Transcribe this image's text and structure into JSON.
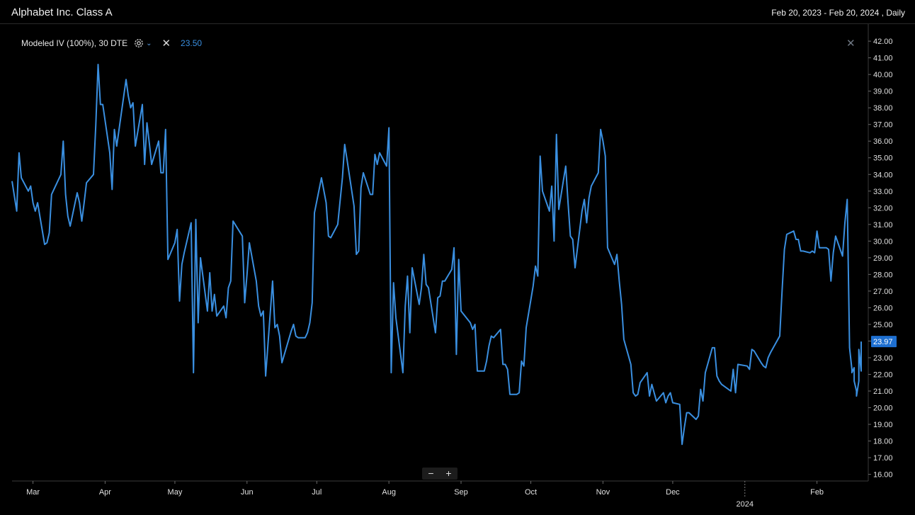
{
  "header": {
    "title": "Alphabet Inc. Class A",
    "range": "Feb 20, 2023 - Feb 20, 2024 , Daily"
  },
  "legend": {
    "label": "Modeled IV (100%), 30 DTE",
    "value": "23.50"
  },
  "colors": {
    "series": "#3a8fe0",
    "background": "#000000",
    "label_box": "#1e6fd0"
  },
  "zoom": {
    "minus": "−",
    "plus": "+"
  },
  "close_symbol": "✕",
  "chart_data": {
    "type": "line",
    "x_start": "2023-02-20",
    "x_end": "2024-02-20",
    "ylim": [
      15.6,
      42.6
    ],
    "y_ticks": [
      "16.00",
      "17.00",
      "18.00",
      "19.00",
      "20.00",
      "21.00",
      "22.00",
      "23.00",
      "24.00",
      "25.00",
      "26.00",
      "27.00",
      "28.00",
      "29.00",
      "30.00",
      "31.00",
      "32.00",
      "33.00",
      "34.00",
      "35.00",
      "36.00",
      "37.00",
      "38.00",
      "39.00",
      "40.00",
      "41.00",
      "42.00"
    ],
    "x_ticks": [
      {
        "label": "Mar",
        "date": "2023-03-01"
      },
      {
        "label": "Apr",
        "date": "2023-04-01"
      },
      {
        "label": "May",
        "date": "2023-05-01"
      },
      {
        "label": "Jun",
        "date": "2023-06-01"
      },
      {
        "label": "Jul",
        "date": "2023-07-01"
      },
      {
        "label": "Aug",
        "date": "2023-08-01"
      },
      {
        "label": "Sep",
        "date": "2023-09-01"
      },
      {
        "label": "Oct",
        "date": "2023-10-01"
      },
      {
        "label": "Nov",
        "date": "2023-11-01"
      },
      {
        "label": "Dec",
        "date": "2023-12-01"
      },
      {
        "label": "Feb",
        "date": "2024-02-01"
      }
    ],
    "year_marker": {
      "label": "2024",
      "date": "2024-01-01"
    },
    "last_value_label": "23.97",
    "series": [
      {
        "values": [
          [
            "2023-02-20",
            33.6
          ],
          [
            "2023-02-22",
            31.8
          ],
          [
            "2023-02-23",
            35.3
          ],
          [
            "2023-02-24",
            33.8
          ],
          [
            "2023-02-27",
            33.0
          ],
          [
            "2023-02-28",
            33.3
          ],
          [
            "2023-03-01",
            32.3
          ],
          [
            "2023-03-02",
            31.8
          ],
          [
            "2023-03-03",
            32.3
          ],
          [
            "2023-03-06",
            29.8
          ],
          [
            "2023-03-07",
            29.9
          ],
          [
            "2023-03-08",
            30.5
          ],
          [
            "2023-03-09",
            32.8
          ],
          [
            "2023-03-10",
            33.1
          ],
          [
            "2023-03-13",
            34.0
          ],
          [
            "2023-03-14",
            36.0
          ],
          [
            "2023-03-15",
            32.8
          ],
          [
            "2023-03-16",
            31.5
          ],
          [
            "2023-03-17",
            30.9
          ],
          [
            "2023-03-20",
            32.9
          ],
          [
            "2023-03-21",
            32.3
          ],
          [
            "2023-03-22",
            31.2
          ],
          [
            "2023-03-23",
            32.3
          ],
          [
            "2023-03-24",
            33.5
          ],
          [
            "2023-03-27",
            34.0
          ],
          [
            "2023-03-28",
            37.0
          ],
          [
            "2023-03-29",
            40.6
          ],
          [
            "2023-03-30",
            38.2
          ],
          [
            "2023-03-31",
            38.2
          ],
          [
            "2023-04-03",
            35.3
          ],
          [
            "2023-04-04",
            33.1
          ],
          [
            "2023-04-05",
            36.7
          ],
          [
            "2023-04-06",
            35.7
          ],
          [
            "2023-04-10",
            39.7
          ],
          [
            "2023-04-11",
            38.7
          ],
          [
            "2023-04-12",
            38.0
          ],
          [
            "2023-04-13",
            38.3
          ],
          [
            "2023-04-14",
            35.7
          ],
          [
            "2023-04-17",
            38.2
          ],
          [
            "2023-04-18",
            34.6
          ],
          [
            "2023-04-19",
            37.1
          ],
          [
            "2023-04-20",
            35.9
          ],
          [
            "2023-04-21",
            34.6
          ],
          [
            "2023-04-24",
            36.0
          ],
          [
            "2023-04-25",
            34.1
          ],
          [
            "2023-04-26",
            34.1
          ],
          [
            "2023-04-27",
            36.7
          ],
          [
            "2023-04-28",
            28.9
          ],
          [
            "2023-05-01",
            29.9
          ],
          [
            "2023-05-02",
            30.7
          ],
          [
            "2023-05-03",
            26.4
          ],
          [
            "2023-05-04",
            28.6
          ],
          [
            "2023-05-05",
            29.3
          ],
          [
            "2023-05-08",
            31.1
          ],
          [
            "2023-05-09",
            22.1
          ],
          [
            "2023-05-10",
            31.3
          ],
          [
            "2023-05-11",
            25.1
          ],
          [
            "2023-05-12",
            29.0
          ],
          [
            "2023-05-15",
            25.8
          ],
          [
            "2023-05-16",
            28.1
          ],
          [
            "2023-05-17",
            25.8
          ],
          [
            "2023-05-18",
            26.8
          ],
          [
            "2023-05-19",
            25.5
          ],
          [
            "2023-05-22",
            26.1
          ],
          [
            "2023-05-23",
            25.4
          ],
          [
            "2023-05-24",
            27.2
          ],
          [
            "2023-05-25",
            27.6
          ],
          [
            "2023-05-26",
            31.2
          ],
          [
            "2023-05-30",
            30.3
          ],
          [
            "2023-05-31",
            26.3
          ],
          [
            "2023-06-01",
            28.0
          ],
          [
            "2023-06-02",
            29.9
          ],
          [
            "2023-06-05",
            27.6
          ],
          [
            "2023-06-06",
            26.1
          ],
          [
            "2023-06-07",
            25.5
          ],
          [
            "2023-06-08",
            25.8
          ],
          [
            "2023-06-09",
            21.9
          ],
          [
            "2023-06-12",
            27.6
          ],
          [
            "2023-06-13",
            24.8
          ],
          [
            "2023-06-14",
            25.0
          ],
          [
            "2023-06-15",
            24.3
          ],
          [
            "2023-06-16",
            22.7
          ],
          [
            "2023-06-20",
            24.6
          ],
          [
            "2023-06-21",
            25.0
          ],
          [
            "2023-06-22",
            24.3
          ],
          [
            "2023-06-23",
            24.2
          ],
          [
            "2023-06-26",
            24.2
          ],
          [
            "2023-06-27",
            24.5
          ],
          [
            "2023-06-28",
            25.1
          ],
          [
            "2023-06-29",
            26.3
          ],
          [
            "2023-06-30",
            31.7
          ],
          [
            "2023-07-03",
            33.8
          ],
          [
            "2023-07-05",
            32.3
          ],
          [
            "2023-07-06",
            30.3
          ],
          [
            "2023-07-07",
            30.2
          ],
          [
            "2023-07-10",
            31.0
          ],
          [
            "2023-07-11",
            32.4
          ],
          [
            "2023-07-12",
            33.8
          ],
          [
            "2023-07-13",
            35.8
          ],
          [
            "2023-07-14",
            34.9
          ],
          [
            "2023-07-17",
            32.1
          ],
          [
            "2023-07-18",
            29.2
          ],
          [
            "2023-07-19",
            29.4
          ],
          [
            "2023-07-20",
            33.2
          ],
          [
            "2023-07-21",
            34.1
          ],
          [
            "2023-07-24",
            32.8
          ],
          [
            "2023-07-25",
            32.8
          ],
          [
            "2023-07-26",
            35.2
          ],
          [
            "2023-07-27",
            34.6
          ],
          [
            "2023-07-28",
            35.3
          ],
          [
            "2023-07-31",
            34.5
          ],
          [
            "2023-08-01",
            36.8
          ],
          [
            "2023-08-02",
            22.1
          ],
          [
            "2023-08-03",
            27.5
          ],
          [
            "2023-08-04",
            25.4
          ],
          [
            "2023-08-07",
            22.1
          ],
          [
            "2023-08-08",
            26.1
          ],
          [
            "2023-08-09",
            27.9
          ],
          [
            "2023-08-10",
            24.5
          ],
          [
            "2023-08-11",
            28.4
          ],
          [
            "2023-08-14",
            26.2
          ],
          [
            "2023-08-15",
            27.2
          ],
          [
            "2023-08-16",
            29.2
          ],
          [
            "2023-08-17",
            27.4
          ],
          [
            "2023-08-18",
            27.2
          ],
          [
            "2023-08-21",
            24.5
          ],
          [
            "2023-08-22",
            26.6
          ],
          [
            "2023-08-23",
            26.7
          ],
          [
            "2023-08-24",
            27.6
          ],
          [
            "2023-08-25",
            27.6
          ],
          [
            "2023-08-28",
            28.3
          ],
          [
            "2023-08-29",
            29.6
          ],
          [
            "2023-08-30",
            23.2
          ],
          [
            "2023-08-31",
            28.9
          ],
          [
            "2023-09-01",
            25.8
          ],
          [
            "2023-09-05",
            25.1
          ],
          [
            "2023-09-06",
            24.7
          ],
          [
            "2023-09-07",
            25.0
          ],
          [
            "2023-09-08",
            22.2
          ],
          [
            "2023-09-11",
            22.2
          ],
          [
            "2023-09-12",
            22.8
          ],
          [
            "2023-09-13",
            23.7
          ],
          [
            "2023-09-14",
            24.3
          ],
          [
            "2023-09-15",
            24.2
          ],
          [
            "2023-09-18",
            24.7
          ],
          [
            "2023-09-19",
            22.6
          ],
          [
            "2023-09-20",
            22.6
          ],
          [
            "2023-09-21",
            22.3
          ],
          [
            "2023-09-22",
            20.8
          ],
          [
            "2023-09-25",
            20.8
          ],
          [
            "2023-09-26",
            20.9
          ],
          [
            "2023-09-27",
            22.8
          ],
          [
            "2023-09-28",
            22.5
          ],
          [
            "2023-09-29",
            24.8
          ],
          [
            "2023-10-02",
            27.3
          ],
          [
            "2023-10-03",
            28.5
          ],
          [
            "2023-10-04",
            27.9
          ],
          [
            "2023-10-05",
            35.1
          ],
          [
            "2023-10-06",
            33.0
          ],
          [
            "2023-10-09",
            31.8
          ],
          [
            "2023-10-10",
            33.3
          ],
          [
            "2023-10-11",
            30.0
          ],
          [
            "2023-10-12",
            36.4
          ],
          [
            "2023-10-13",
            31.9
          ],
          [
            "2023-10-16",
            34.5
          ],
          [
            "2023-10-17",
            32.3
          ],
          [
            "2023-10-18",
            30.3
          ],
          [
            "2023-10-19",
            30.1
          ],
          [
            "2023-10-20",
            28.4
          ],
          [
            "2023-10-23",
            31.8
          ],
          [
            "2023-10-24",
            32.5
          ],
          [
            "2023-10-25",
            31.1
          ],
          [
            "2023-10-26",
            32.6
          ],
          [
            "2023-10-27",
            33.3
          ],
          [
            "2023-10-30",
            34.1
          ],
          [
            "2023-10-31",
            36.7
          ],
          [
            "2023-11-01",
            36.0
          ],
          [
            "2023-11-02",
            35.1
          ],
          [
            "2023-11-03",
            29.6
          ],
          [
            "2023-11-06",
            28.6
          ],
          [
            "2023-11-07",
            29.2
          ],
          [
            "2023-11-08",
            27.6
          ],
          [
            "2023-11-09",
            26.2
          ],
          [
            "2023-11-10",
            24.1
          ],
          [
            "2023-11-13",
            22.6
          ],
          [
            "2023-11-14",
            20.9
          ],
          [
            "2023-11-15",
            20.7
          ],
          [
            "2023-11-16",
            20.8
          ],
          [
            "2023-11-17",
            21.5
          ],
          [
            "2023-11-20",
            22.1
          ],
          [
            "2023-11-21",
            20.7
          ],
          [
            "2023-11-22",
            21.4
          ],
          [
            "2023-11-24",
            20.4
          ],
          [
            "2023-11-27",
            20.9
          ],
          [
            "2023-11-28",
            20.3
          ],
          [
            "2023-11-29",
            20.7
          ],
          [
            "2023-11-30",
            20.9
          ],
          [
            "2023-12-01",
            20.3
          ],
          [
            "2023-12-04",
            20.2
          ],
          [
            "2023-12-05",
            17.8
          ],
          [
            "2023-12-06",
            18.8
          ],
          [
            "2023-12-07",
            19.7
          ],
          [
            "2023-12-08",
            19.7
          ],
          [
            "2023-12-11",
            19.3
          ],
          [
            "2023-12-12",
            19.5
          ],
          [
            "2023-12-13",
            21.1
          ],
          [
            "2023-12-14",
            20.4
          ],
          [
            "2023-12-15",
            22.1
          ],
          [
            "2023-12-18",
            23.6
          ],
          [
            "2023-12-19",
            23.6
          ],
          [
            "2023-12-20",
            21.9
          ],
          [
            "2023-12-21",
            21.6
          ],
          [
            "2023-12-22",
            21.4
          ],
          [
            "2023-12-26",
            21.0
          ],
          [
            "2023-12-27",
            22.3
          ],
          [
            "2023-12-28",
            20.9
          ],
          [
            "2023-12-29",
            22.6
          ],
          [
            "2024-01-02",
            22.5
          ],
          [
            "2024-01-03",
            22.3
          ],
          [
            "2024-01-04",
            23.5
          ],
          [
            "2024-01-05",
            23.4
          ],
          [
            "2024-01-08",
            22.7
          ],
          [
            "2024-01-09",
            22.5
          ],
          [
            "2024-01-10",
            22.4
          ],
          [
            "2024-01-11",
            23.0
          ],
          [
            "2024-01-12",
            23.3
          ],
          [
            "2024-01-16",
            24.3
          ],
          [
            "2024-01-17",
            27.0
          ],
          [
            "2024-01-18",
            29.5
          ],
          [
            "2024-01-19",
            30.4
          ],
          [
            "2024-01-22",
            30.6
          ],
          [
            "2024-01-23",
            30.1
          ],
          [
            "2024-01-24",
            30.1
          ],
          [
            "2024-01-25",
            29.4
          ],
          [
            "2024-01-26",
            29.4
          ],
          [
            "2024-01-29",
            29.3
          ],
          [
            "2024-01-30",
            29.4
          ],
          [
            "2024-01-31",
            29.3
          ],
          [
            "2024-02-01",
            30.6
          ],
          [
            "2024-02-02",
            29.6
          ],
          [
            "2024-02-05",
            29.6
          ],
          [
            "2024-02-06",
            29.5
          ],
          [
            "2024-02-07",
            27.6
          ],
          [
            "2024-02-08",
            29.3
          ],
          [
            "2024-02-09",
            30.3
          ],
          [
            "2024-02-12",
            29.1
          ],
          [
            "2024-02-13",
            31.1
          ],
          [
            "2024-02-14",
            32.5
          ],
          [
            "2024-02-15",
            23.6
          ],
          [
            "2024-02-16",
            22.3
          ],
          [
            "2024-02-16",
            22.1
          ],
          [
            "2024-02-17",
            22.4
          ],
          [
            "2024-02-17",
            21.6
          ],
          [
            "2024-02-18",
            21.0
          ],
          [
            "2024-02-18",
            20.7
          ],
          [
            "2024-02-19",
            21.6
          ],
          [
            "2024-02-19",
            21.8
          ],
          [
            "2024-02-19",
            23.5
          ],
          [
            "2024-02-20",
            22.2
          ],
          [
            "2024-02-20",
            23.97
          ]
        ]
      }
    ]
  }
}
